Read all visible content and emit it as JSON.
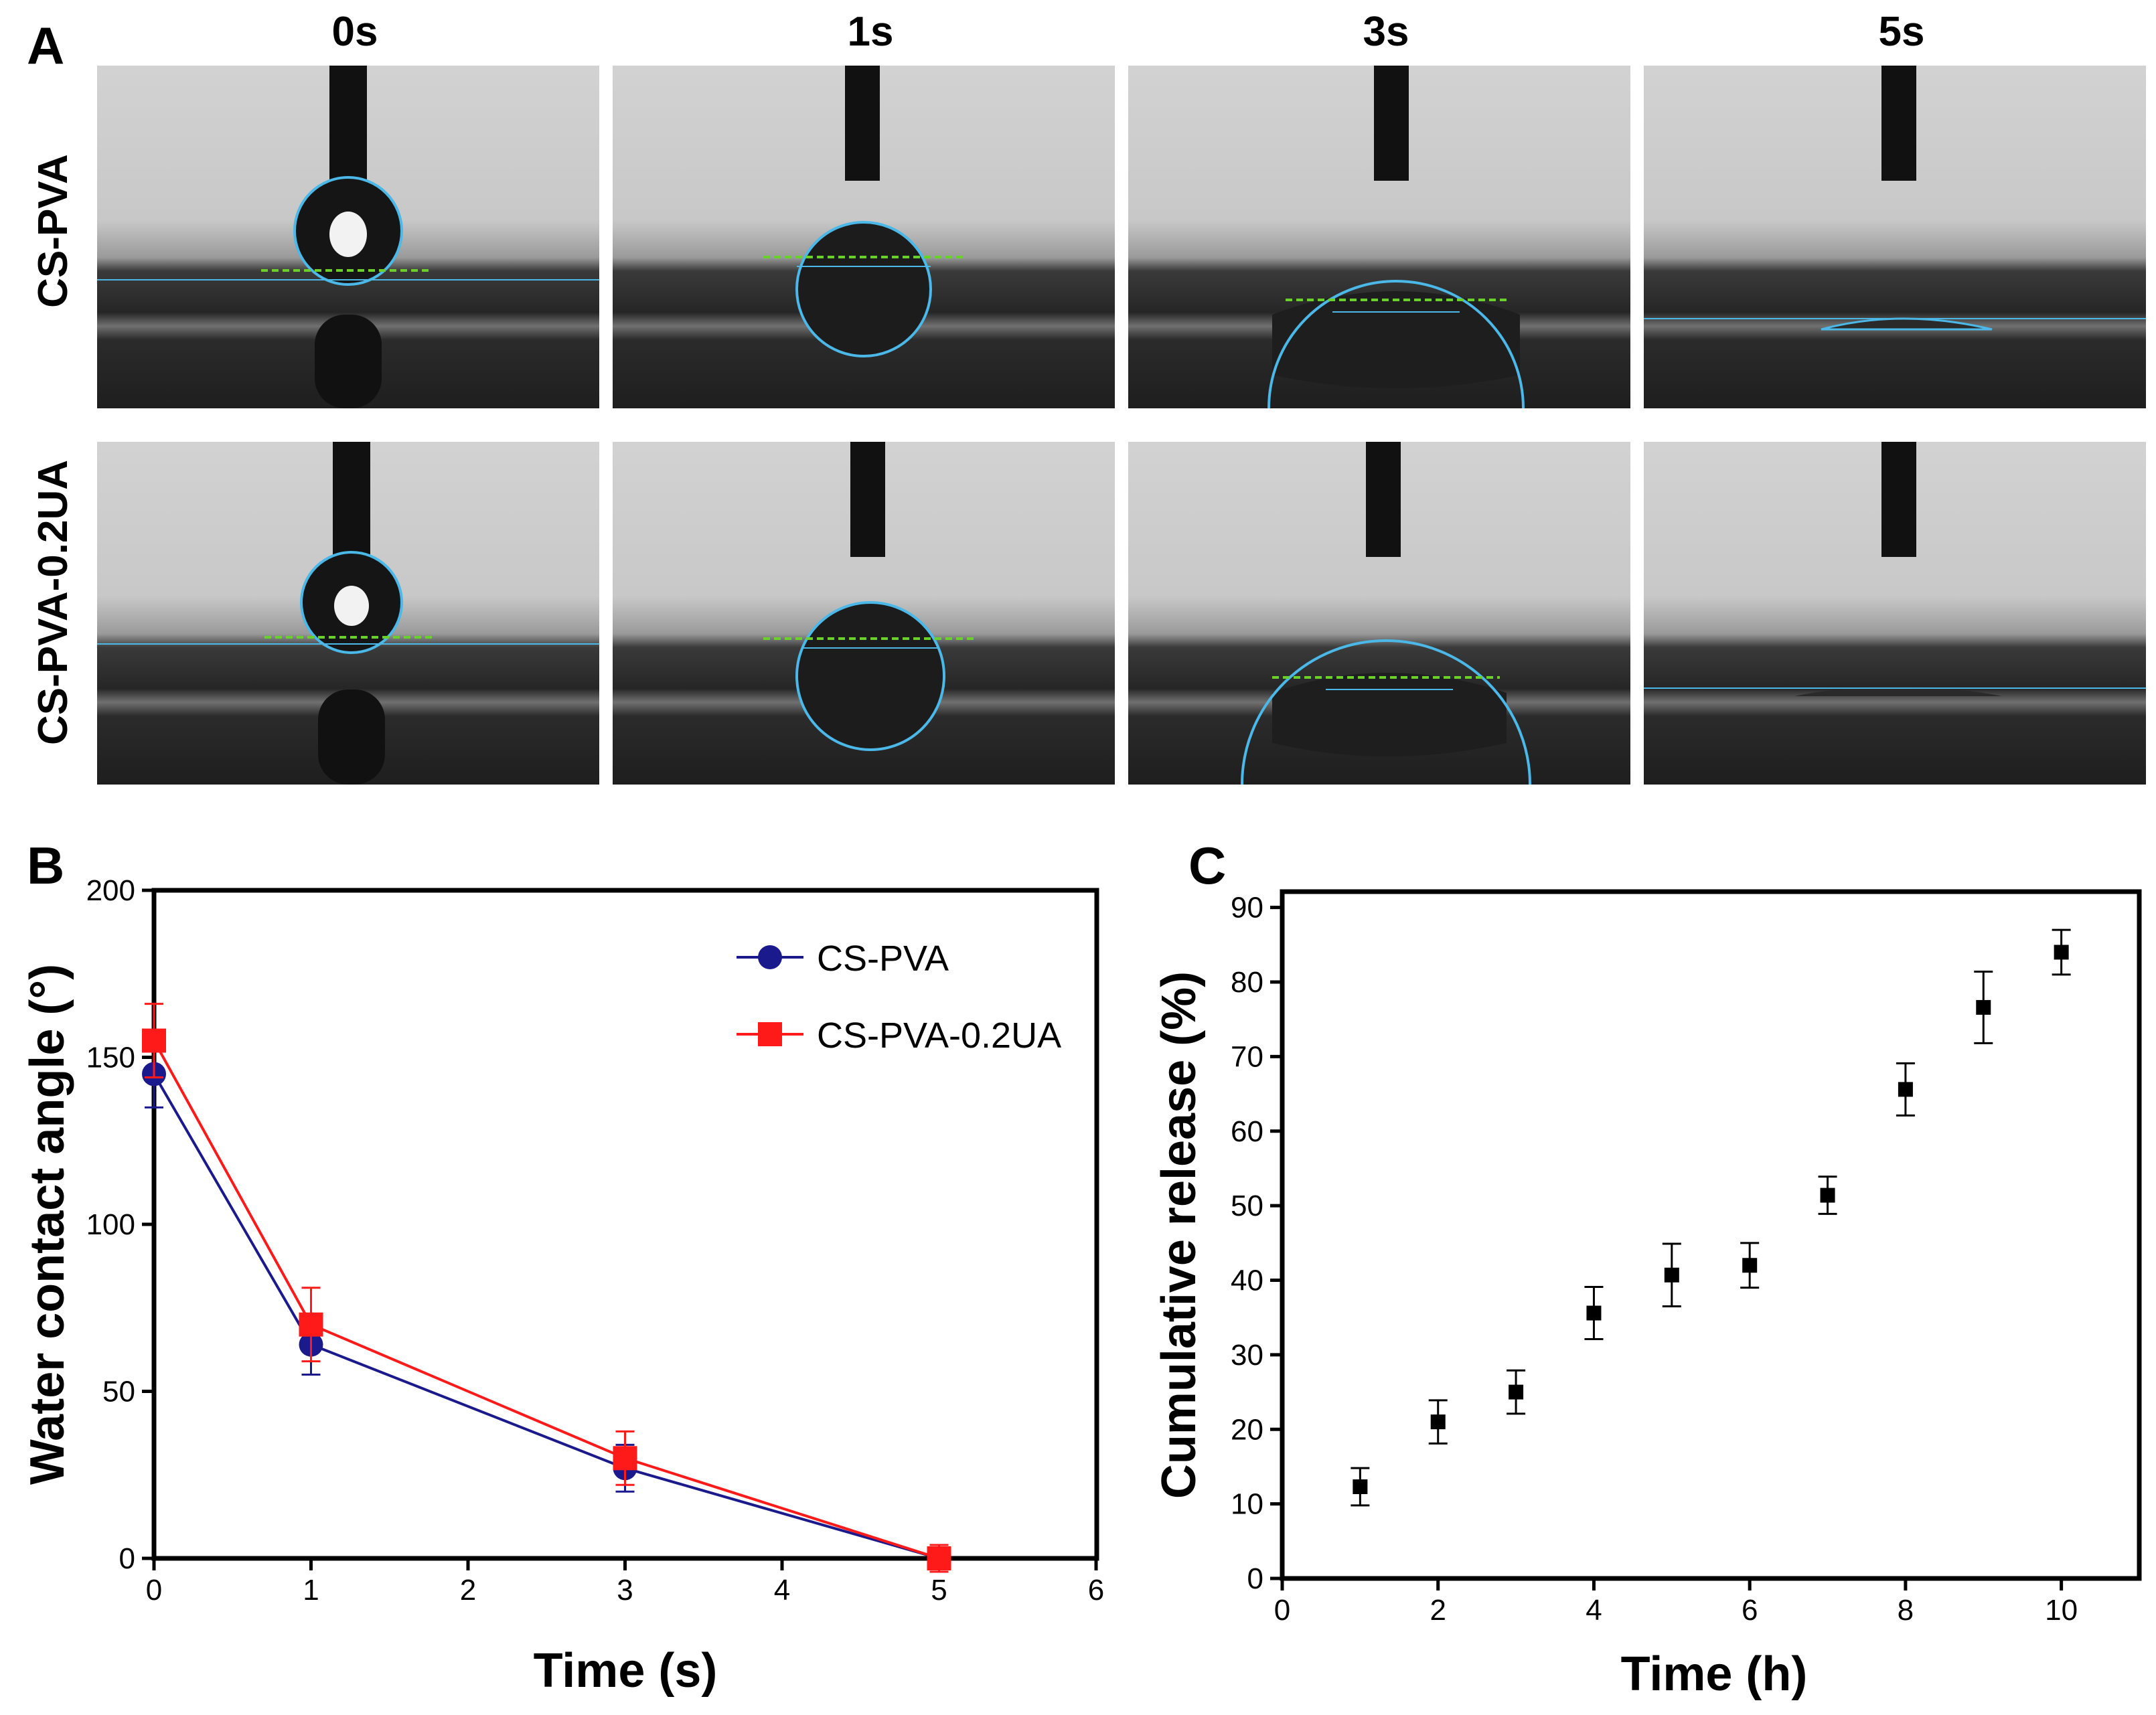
{
  "panelA": {
    "letter": "A",
    "columns": [
      "0s",
      "1s",
      "3s",
      "5s"
    ],
    "rows": [
      "CS-PVA",
      "CS-PVA-0.2UA"
    ]
  },
  "chart_data": [
    {
      "panel": "B",
      "type": "line",
      "xlabel": "Time (s)",
      "ylabel": "Water contact angle (°)",
      "xlim": [
        0,
        6
      ],
      "ylim": [
        0,
        200
      ],
      "xticks": [
        0,
        1,
        2,
        3,
        4,
        5,
        6
      ],
      "yticks": [
        0,
        50,
        100,
        150,
        200
      ],
      "legend_position": "top-right",
      "series": [
        {
          "name": "CS-PVA",
          "color": "#1a1a8c",
          "marker": "circle",
          "x": [
            0,
            1,
            3,
            5
          ],
          "y": [
            145,
            64,
            27,
            0
          ],
          "err": [
            10,
            9,
            7,
            4
          ]
        },
        {
          "name": "CS-PVA-0.2UA",
          "color": "#ff1a1a",
          "marker": "square",
          "x": [
            0,
            1,
            3,
            5
          ],
          "y": [
            155,
            70,
            30,
            0
          ],
          "err": [
            11,
            11,
            8,
            4
          ]
        }
      ]
    },
    {
      "panel": "C",
      "type": "scatter",
      "xlabel": "Time (h)",
      "ylabel": "Cumulative release (%)",
      "xlim": [
        0,
        11
      ],
      "ylim": [
        0,
        95
      ],
      "xticks": [
        0,
        2,
        4,
        6,
        8,
        10
      ],
      "yticks": [
        0,
        10,
        20,
        30,
        40,
        50,
        60,
        70,
        80,
        90
      ],
      "series": [
        {
          "name": "Cumulative release",
          "color": "#000000",
          "marker": "square",
          "x": [
            1,
            2,
            3,
            4,
            5,
            6,
            7,
            8,
            9,
            10
          ],
          "y": [
            12.3,
            21,
            25,
            35.6,
            40.7,
            42,
            51.4,
            65.6,
            76.6,
            84
          ],
          "err": [
            2.5,
            2.9,
            2.9,
            3.5,
            4.2,
            3.0,
            2.5,
            3.5,
            4.8,
            3.0
          ]
        }
      ]
    }
  ]
}
